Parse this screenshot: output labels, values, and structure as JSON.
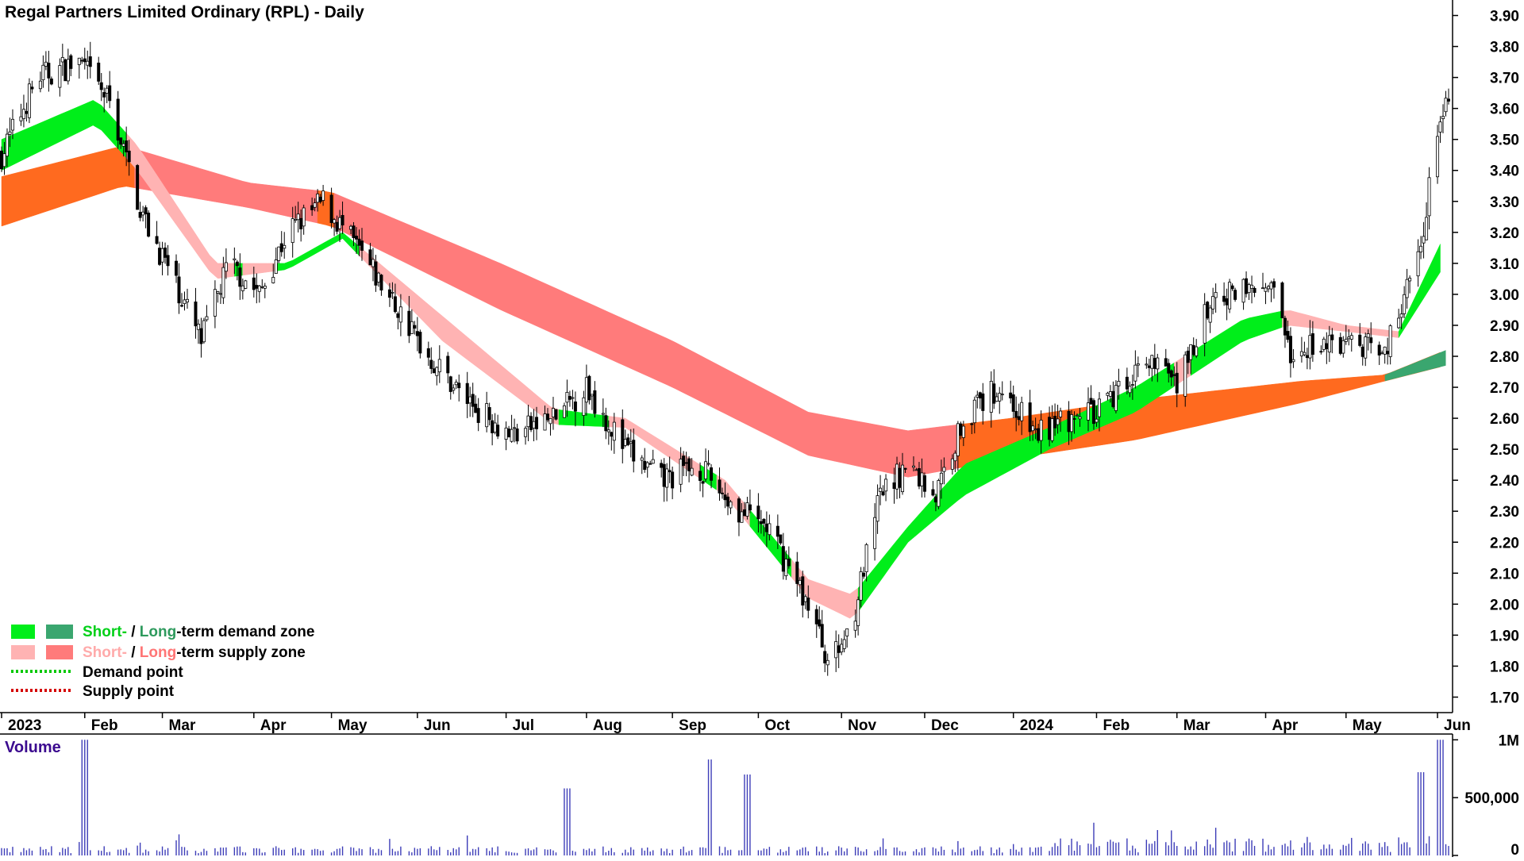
{
  "title": "Regal Partners Limited Ordinary (RPL) - Daily",
  "colors": {
    "short_demand": "#00ee1a",
    "long_demand": "#3aa66f",
    "short_supply": "#ffb3b3",
    "long_supply": "#ff7b7b",
    "overlap_orange": "#ff6a1f",
    "demand_point": "#00c800",
    "supply_point": "#d40000",
    "volume_bar": "#3d3db8",
    "candle": "#000000"
  },
  "legend": {
    "row1": {
      "short": "Short-",
      "sep": " / ",
      "long": "Long",
      "rest": "-term demand zone"
    },
    "row2": {
      "short": "Short-",
      "sep": " / ",
      "long": "Long",
      "rest": "-term supply zone"
    },
    "row3": "Demand point",
    "row4": "Supply point"
  },
  "volume": {
    "title": "Volume",
    "ticks": [
      {
        "value": 1000000,
        "label": "1M"
      },
      {
        "value": 500000,
        "label": "500,000"
      },
      {
        "value": 0,
        "label": "0"
      }
    ]
  },
  "chart_data": {
    "type": "candlestick",
    "title": "Regal Partners Limited Ordinary (RPL) - Daily",
    "ylim": [
      1.65,
      3.95
    ],
    "yticks": [
      "1.70",
      "1.80",
      "1.90",
      "2.00",
      "2.10",
      "2.20",
      "2.30",
      "2.40",
      "2.50",
      "2.60",
      "2.70",
      "2.80",
      "2.90",
      "3.00",
      "3.10",
      "3.20",
      "3.30",
      "3.40",
      "3.50",
      "3.60",
      "3.70",
      "3.80",
      "3.90"
    ],
    "months": [
      "2023",
      "Feb",
      "Mar",
      "Apr",
      "May",
      "Jun",
      "Jul",
      "Aug",
      "Sep",
      "Oct",
      "Nov",
      "Dec",
      "2024",
      "Feb",
      "Mar",
      "Apr",
      "May",
      "Jun"
    ],
    "price_path": [
      [
        "2023-01-02",
        3.45
      ],
      [
        "2023-01-15",
        3.7
      ],
      [
        "2023-01-30",
        3.75
      ],
      [
        "2023-02-10",
        3.62
      ],
      [
        "2023-02-22",
        3.25
      ],
      [
        "2023-03-05",
        3.05
      ],
      [
        "2023-03-15",
        2.85
      ],
      [
        "2023-03-25",
        3.1
      ],
      [
        "2023-04-05",
        3.0
      ],
      [
        "2023-04-15",
        3.2
      ],
      [
        "2023-04-28",
        3.3
      ],
      [
        "2023-05-10",
        3.15
      ],
      [
        "2023-05-25",
        2.95
      ],
      [
        "2023-06-05",
        2.8
      ],
      [
        "2023-06-20",
        2.65
      ],
      [
        "2023-07-05",
        2.55
      ],
      [
        "2023-07-20",
        2.6
      ],
      [
        "2023-08-01",
        2.7
      ],
      [
        "2023-08-15",
        2.5
      ],
      [
        "2023-08-28",
        2.4
      ],
      [
        "2023-09-10",
        2.45
      ],
      [
        "2023-09-25",
        2.3
      ],
      [
        "2023-10-05",
        2.25
      ],
      [
        "2023-10-20",
        2.0
      ],
      [
        "2023-10-28",
        1.8
      ],
      [
        "2023-11-05",
        1.95
      ],
      [
        "2023-11-15",
        2.35
      ],
      [
        "2023-11-25",
        2.45
      ],
      [
        "2023-12-05",
        2.35
      ],
      [
        "2023-12-15",
        2.6
      ],
      [
        "2023-12-28",
        2.7
      ],
      [
        "2024-01-10",
        2.55
      ],
      [
        "2024-01-25",
        2.6
      ],
      [
        "2024-02-05",
        2.65
      ],
      [
        "2024-02-18",
        2.8
      ],
      [
        "2024-03-01",
        2.7
      ],
      [
        "2024-03-12",
        2.95
      ],
      [
        "2024-03-25",
        3.05
      ],
      [
        "2024-04-05",
        3.0
      ],
      [
        "2024-04-12",
        2.75
      ],
      [
        "2024-04-20",
        2.85
      ],
      [
        "2024-05-05",
        2.85
      ],
      [
        "2024-05-15",
        2.8
      ],
      [
        "2024-05-28",
        3.15
      ],
      [
        "2024-06-03",
        3.55
      ],
      [
        "2024-06-06",
        3.65
      ]
    ],
    "long_zone": [
      [
        "2023-01-02",
        3.38,
        3.22
      ],
      [
        "2023-02-15",
        3.48,
        3.35
      ],
      [
        "2023-04-01",
        3.36,
        3.28
      ],
      [
        "2023-05-01",
        3.33,
        3.22
      ],
      [
        "2023-07-01",
        3.1,
        2.95
      ],
      [
        "2023-09-01",
        2.85,
        2.7
      ],
      [
        "2023-10-20",
        2.62,
        2.48
      ],
      [
        "2023-11-25",
        2.56,
        2.41
      ],
      [
        "2024-01-01",
        2.6,
        2.47
      ],
      [
        "2024-02-15",
        2.66,
        2.53
      ],
      [
        "2024-04-15",
        2.72,
        2.65
      ],
      [
        "2024-05-15",
        2.74,
        2.72
      ],
      [
        "2024-06-06",
        2.82,
        2.77
      ]
    ],
    "short_zone": [
      [
        "2023-01-02",
        3.5,
        3.4
      ],
      [
        "2023-02-05",
        3.63,
        3.55
      ],
      [
        "2023-02-20",
        3.48,
        3.4
      ],
      [
        "2023-03-20",
        3.1,
        3.05
      ],
      [
        "2023-04-15",
        3.1,
        3.08
      ],
      [
        "2023-05-05",
        3.2,
        3.18
      ],
      [
        "2023-06-10",
        2.93,
        2.85
      ],
      [
        "2023-07-20",
        2.63,
        2.58
      ],
      [
        "2023-08-15",
        2.6,
        2.57
      ],
      [
        "2023-09-20",
        2.4,
        2.35
      ],
      [
        "2023-10-20",
        2.08,
        2.02
      ],
      [
        "2023-11-05",
        2.03,
        1.95
      ],
      [
        "2023-11-25",
        2.25,
        2.2
      ],
      [
        "2023-12-15",
        2.45,
        2.35
      ],
      [
        "2024-01-15",
        2.57,
        2.5
      ],
      [
        "2024-02-15",
        2.7,
        2.62
      ],
      [
        "2024-03-25",
        2.92,
        2.85
      ],
      [
        "2024-04-10",
        2.95,
        2.9
      ],
      [
        "2024-05-01",
        2.9,
        2.88
      ],
      [
        "2024-05-20",
        2.88,
        2.86
      ],
      [
        "2024-06-06",
        3.2,
        3.1
      ]
    ],
    "volume_peaks": [
      [
        "2023-02-01",
        1000000
      ],
      [
        "2023-07-25",
        580000
      ],
      [
        "2023-09-15",
        830000
      ],
      [
        "2023-09-28",
        700000
      ],
      [
        "2024-05-28",
        720000
      ],
      [
        "2024-06-04",
        1000000
      ]
    ],
    "grid": false,
    "legend_position": "bottom-left"
  }
}
